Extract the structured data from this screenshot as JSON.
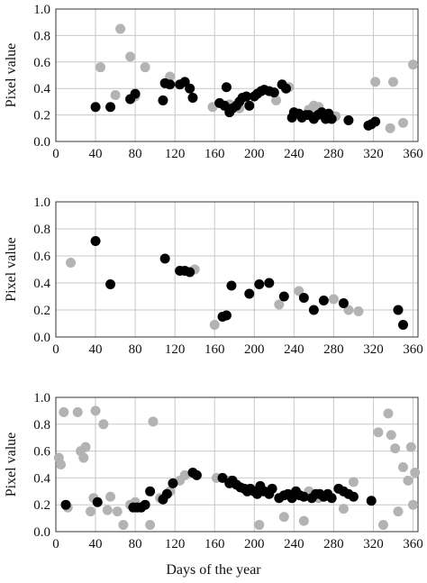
{
  "chart_data": [
    {
      "type": "scatter",
      "ylabel": "Pixel value",
      "xlim": [
        0,
        365
      ],
      "ylim": [
        0,
        1.0
      ],
      "x_ticks": [
        "0",
        "40",
        "80",
        "120",
        "160",
        "200",
        "240",
        "280",
        "320",
        "360"
      ],
      "y_ticks": [
        "0.0",
        "0.2",
        "0.4",
        "0.6",
        "0.8",
        "1.0"
      ],
      "grid": true,
      "series": [
        {
          "color": "#b3b3b3",
          "points": [
            [
              45,
              0.56
            ],
            [
              60,
              0.35
            ],
            [
              65,
              0.85
            ],
            [
              75,
              0.64
            ],
            [
              80,
              0.34
            ],
            [
              90,
              0.56
            ],
            [
              115,
              0.49
            ],
            [
              158,
              0.26
            ],
            [
              175,
              0.28
            ],
            [
              185,
              0.25
            ],
            [
              222,
              0.31
            ],
            [
              235,
              0.41
            ],
            [
              255,
              0.24
            ],
            [
              260,
              0.27
            ],
            [
              265,
              0.26
            ],
            [
              282,
              0.19
            ],
            [
              322,
              0.45
            ],
            [
              337,
              0.1
            ],
            [
              340,
              0.45
            ],
            [
              350,
              0.14
            ],
            [
              360,
              0.58
            ]
          ]
        },
        {
          "color": "#000000",
          "points": [
            [
              40,
              0.26
            ],
            [
              55,
              0.26
            ],
            [
              75,
              0.32
            ],
            [
              80,
              0.36
            ],
            [
              108,
              0.31
            ],
            [
              110,
              0.44
            ],
            [
              115,
              0.43
            ],
            [
              125,
              0.43
            ],
            [
              130,
              0.45
            ],
            [
              135,
              0.4
            ],
            [
              138,
              0.33
            ],
            [
              165,
              0.29
            ],
            [
              170,
              0.27
            ],
            [
              172,
              0.41
            ],
            [
              175,
              0.22
            ],
            [
              178,
              0.25
            ],
            [
              182,
              0.27
            ],
            [
              185,
              0.3
            ],
            [
              188,
              0.33
            ],
            [
              192,
              0.34
            ],
            [
              195,
              0.27
            ],
            [
              200,
              0.34
            ],
            [
              203,
              0.36
            ],
            [
              207,
              0.38
            ],
            [
              210,
              0.39
            ],
            [
              215,
              0.38
            ],
            [
              220,
              0.37
            ],
            [
              228,
              0.43
            ],
            [
              232,
              0.4
            ],
            [
              238,
              0.18
            ],
            [
              240,
              0.22
            ],
            [
              245,
              0.21
            ],
            [
              248,
              0.18
            ],
            [
              252,
              0.2
            ],
            [
              255,
              0.2
            ],
            [
              260,
              0.17
            ],
            [
              264,
              0.2
            ],
            [
              268,
              0.22
            ],
            [
              272,
              0.17
            ],
            [
              275,
              0.21
            ],
            [
              278,
              0.17
            ],
            [
              295,
              0.16
            ],
            [
              315,
              0.12
            ],
            [
              318,
              0.13
            ],
            [
              322,
              0.15
            ]
          ]
        }
      ]
    },
    {
      "type": "scatter",
      "ylabel": "Pixel value",
      "xlim": [
        0,
        365
      ],
      "ylim": [
        0,
        1.0
      ],
      "x_ticks": [
        "0",
        "40",
        "80",
        "120",
        "160",
        "200",
        "240",
        "280",
        "320",
        "360"
      ],
      "y_ticks": [
        "0.0",
        "0.2",
        "0.4",
        "0.6",
        "0.8",
        "1.0"
      ],
      "grid": true,
      "series": [
        {
          "color": "#b3b3b3",
          "points": [
            [
              15,
              0.55
            ],
            [
              140,
              0.5
            ],
            [
              160,
              0.09
            ],
            [
              225,
              0.24
            ],
            [
              245,
              0.34
            ],
            [
              280,
              0.28
            ],
            [
              295,
              0.2
            ],
            [
              305,
              0.19
            ]
          ]
        },
        {
          "color": "#000000",
          "points": [
            [
              40,
              0.71
            ],
            [
              55,
              0.39
            ],
            [
              110,
              0.58
            ],
            [
              125,
              0.49
            ],
            [
              130,
              0.49
            ],
            [
              135,
              0.48
            ],
            [
              168,
              0.15
            ],
            [
              172,
              0.16
            ],
            [
              177,
              0.38
            ],
            [
              195,
              0.32
            ],
            [
              205,
              0.39
            ],
            [
              215,
              0.4
            ],
            [
              230,
              0.3
            ],
            [
              250,
              0.29
            ],
            [
              260,
              0.2
            ],
            [
              270,
              0.27
            ],
            [
              290,
              0.25
            ],
            [
              345,
              0.2
            ],
            [
              350,
              0.09
            ]
          ]
        }
      ]
    },
    {
      "type": "scatter",
      "ylabel": "Pixel value",
      "xlim": [
        0,
        365
      ],
      "ylim": [
        0,
        1.0
      ],
      "x_ticks": [
        "0",
        "40",
        "80",
        "120",
        "160",
        "200",
        "240",
        "280",
        "320",
        "360"
      ],
      "y_ticks": [
        "0.0",
        "0.2",
        "0.4",
        "0.6",
        "0.8",
        "1.0"
      ],
      "grid": true,
      "series": [
        {
          "color": "#b3b3b3",
          "points": [
            [
              3,
              0.55
            ],
            [
              5,
              0.5
            ],
            [
              8,
              0.89
            ],
            [
              12,
              0.18
            ],
            [
              22,
              0.89
            ],
            [
              25,
              0.6
            ],
            [
              28,
              0.55
            ],
            [
              30,
              0.63
            ],
            [
              35,
              0.15
            ],
            [
              38,
              0.25
            ],
            [
              40,
              0.9
            ],
            [
              48,
              0.8
            ],
            [
              52,
              0.16
            ],
            [
              55,
              0.26
            ],
            [
              62,
              0.15
            ],
            [
              68,
              0.05
            ],
            [
              75,
              0.2
            ],
            [
              80,
              0.22
            ],
            [
              95,
              0.05
            ],
            [
              98,
              0.82
            ],
            [
              105,
              0.25
            ],
            [
              115,
              0.3
            ],
            [
              125,
              0.38
            ],
            [
              130,
              0.42
            ],
            [
              162,
              0.4
            ],
            [
              175,
              0.38
            ],
            [
              205,
              0.05
            ],
            [
              230,
              0.11
            ],
            [
              250,
              0.08
            ],
            [
              255,
              0.3
            ],
            [
              265,
              0.25
            ],
            [
              290,
              0.17
            ],
            [
              300,
              0.37
            ],
            [
              325,
              0.74
            ],
            [
              330,
              0.05
            ],
            [
              335,
              0.88
            ],
            [
              338,
              0.72
            ],
            [
              342,
              0.62
            ],
            [
              345,
              0.15
            ],
            [
              350,
              0.48
            ],
            [
              355,
              0.38
            ],
            [
              358,
              0.63
            ],
            [
              360,
              0.2
            ],
            [
              362,
              0.44
            ]
          ]
        },
        {
          "color": "#000000",
          "points": [
            [
              10,
              0.2
            ],
            [
              42,
              0.22
            ],
            [
              78,
              0.18
            ],
            [
              82,
              0.18
            ],
            [
              86,
              0.18
            ],
            [
              90,
              0.2
            ],
            [
              95,
              0.3
            ],
            [
              108,
              0.24
            ],
            [
              112,
              0.28
            ],
            [
              118,
              0.36
            ],
            [
              138,
              0.44
            ],
            [
              142,
              0.42
            ],
            [
              168,
              0.4
            ],
            [
              175,
              0.36
            ],
            [
              178,
              0.38
            ],
            [
              182,
              0.35
            ],
            [
              186,
              0.33
            ],
            [
              190,
              0.32
            ],
            [
              193,
              0.3
            ],
            [
              196,
              0.32
            ],
            [
              200,
              0.3
            ],
            [
              203,
              0.28
            ],
            [
              206,
              0.34
            ],
            [
              210,
              0.3
            ],
            [
              215,
              0.28
            ],
            [
              218,
              0.32
            ],
            [
              225,
              0.25
            ],
            [
              230,
              0.27
            ],
            [
              234,
              0.28
            ],
            [
              238,
              0.25
            ],
            [
              242,
              0.3
            ],
            [
              246,
              0.27
            ],
            [
              250,
              0.26
            ],
            [
              258,
              0.25
            ],
            [
              262,
              0.28
            ],
            [
              266,
              0.28
            ],
            [
              270,
              0.26
            ],
            [
              274,
              0.28
            ],
            [
              278,
              0.25
            ],
            [
              285,
              0.32
            ],
            [
              290,
              0.3
            ],
            [
              295,
              0.28
            ],
            [
              300,
              0.26
            ],
            [
              318,
              0.23
            ]
          ]
        }
      ]
    }
  ],
  "xlabel": "Days of the year"
}
